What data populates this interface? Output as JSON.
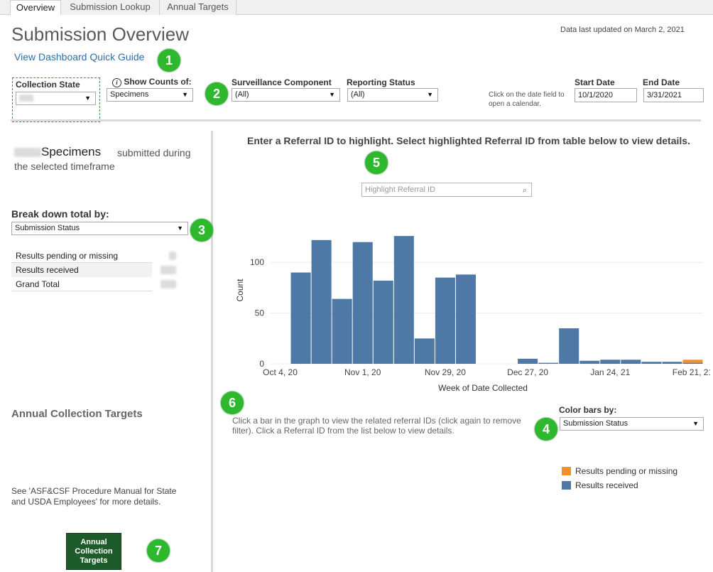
{
  "tabs": [
    {
      "label": "Overview",
      "active": true
    },
    {
      "label": "Submission Lookup",
      "active": false
    },
    {
      "label": "Annual Targets",
      "active": false
    }
  ],
  "header": {
    "title": "Submission Overview",
    "updated": "Data last updated on March 2, 2021",
    "guide_link": "View Dashboard Quick Guide"
  },
  "badges": [
    "1",
    "2",
    "3",
    "4",
    "5",
    "6",
    "7"
  ],
  "filters": {
    "collection_state_label": "Collection State",
    "show_counts_label": "Show Counts of:",
    "show_counts_value": "Specimens",
    "surveillance_label": "Surveillance Component",
    "surveillance_value": "(All)",
    "reporting_label": "Reporting Status",
    "reporting_value": "(All)",
    "date_hint": "Click on the date field to open a calendar.",
    "start_label": "Start Date",
    "start_value": "10/1/2020",
    "end_label": "End Date",
    "end_value": "3/31/2021"
  },
  "summary": {
    "unit": "Specimens",
    "rest": "submitted during the selected timeframe",
    "breakdown_label": "Break down total by:",
    "breakdown_value": "Submission Status",
    "rows": [
      "Results pending or missing",
      "Results received",
      "Grand Total"
    ]
  },
  "targets": {
    "label": "Annual Collection Targets",
    "note": "See 'ASF&CSF Procedure Manual for State and USDA Employees' for more details.",
    "button": "Annual Collection Targets"
  },
  "chart_header": {
    "title": "Enter a Referral ID to highlight. Select highlighted Referral ID from table below to view details.",
    "search_placeholder": "Highlight Referral ID"
  },
  "chart_data": {
    "type": "bar",
    "stacked": true,
    "xlabel": "Week of Date Collected",
    "ylabel": "Count",
    "ylim": [
      0,
      145
    ],
    "yticks": [
      0,
      50,
      100
    ],
    "x_tick_labels": [
      "Oct 4, 20",
      "Nov 1, 20",
      "Nov 29, 20",
      "Dec 27, 20",
      "Jan 24, 21",
      "Feb 21, 21"
    ],
    "categories": [
      "Oct 4",
      "Oct 11",
      "Oct 18",
      "Oct 25",
      "Nov 1",
      "Nov 8",
      "Nov 15",
      "Nov 22",
      "Nov 29",
      "Dec 6",
      "Dec 13",
      "Dec 20",
      "Dec 27",
      "Jan 3",
      "Jan 10",
      "Jan 17",
      "Jan 24",
      "Jan 31",
      "Feb 7",
      "Feb 14",
      "Feb 21"
    ],
    "series": [
      {
        "name": "Results received",
        "color": "#4e79a7",
        "values": [
          0,
          90,
          122,
          64,
          120,
          82,
          126,
          25,
          85,
          88,
          0,
          0,
          5,
          1,
          35,
          3,
          4,
          4,
          2,
          2,
          1
        ]
      },
      {
        "name": "Results pending or missing",
        "color": "#f28e2b",
        "values": [
          0,
          0,
          0,
          0,
          0,
          0,
          0,
          0,
          0,
          0,
          0,
          0,
          0,
          0,
          0,
          0,
          0,
          0,
          0,
          0,
          3
        ]
      }
    ],
    "grid": true
  },
  "below_chart": {
    "instructions": "Click a bar in the graph to view the related referral IDs (click again to remove filter). Click a Referral ID from the list below to view details.",
    "color_by_label": "Color bars by:",
    "color_by_value": "Submission Status"
  },
  "legend": [
    {
      "label": "Results pending or missing",
      "color": "#f28e2b"
    },
    {
      "label": "Results received",
      "color": "#4e79a7"
    }
  ]
}
